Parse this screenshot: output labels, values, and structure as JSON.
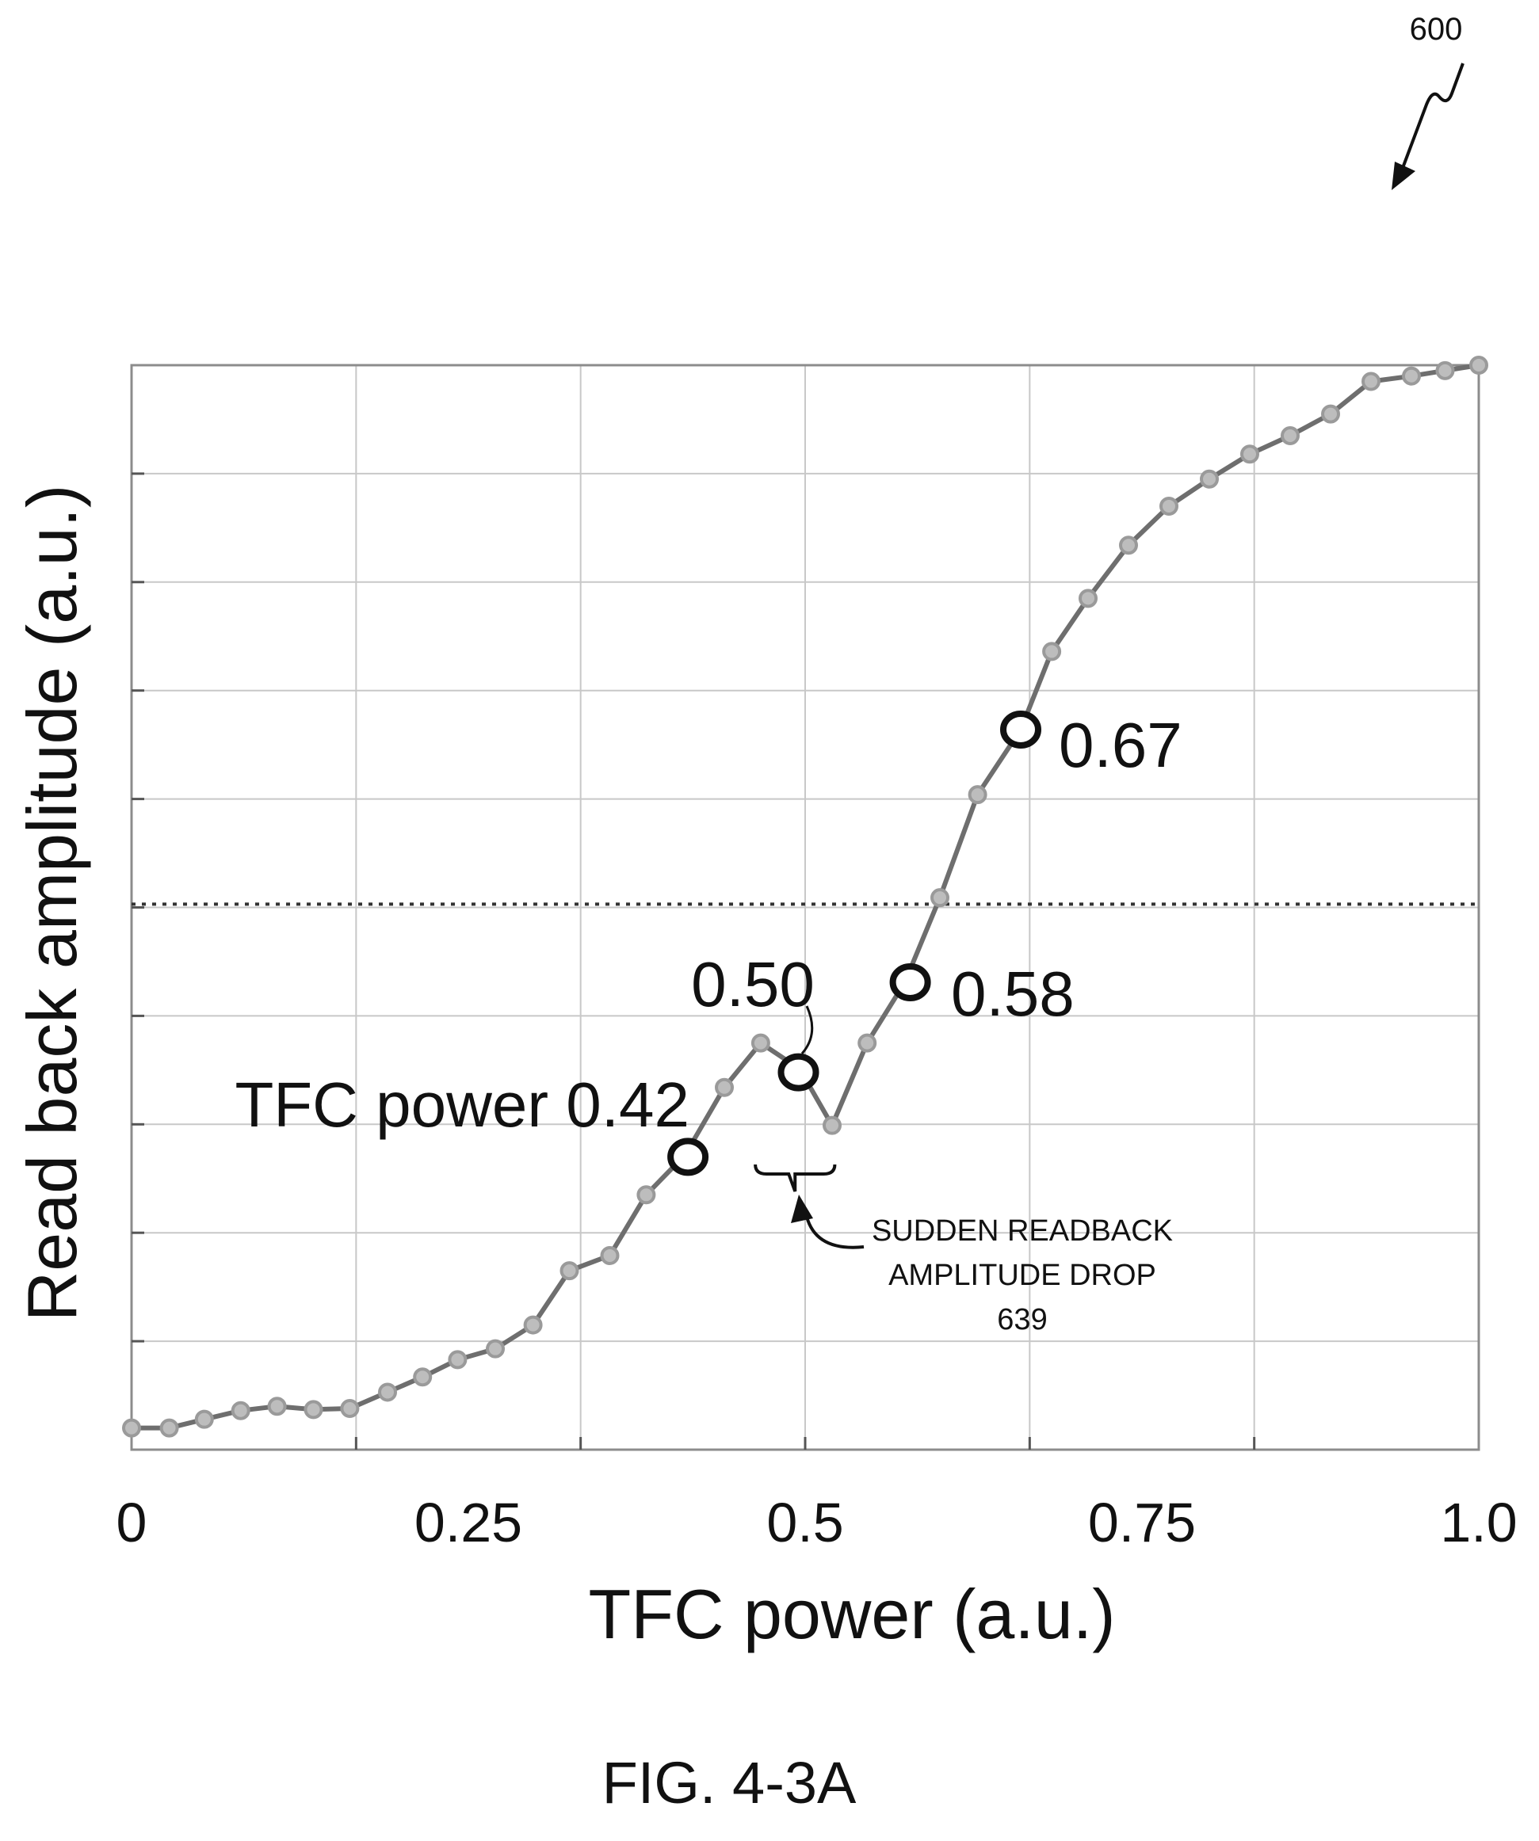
{
  "figure": {
    "ref_number": "600",
    "caption": "FIG. 4-3A"
  },
  "chart_data": {
    "type": "line",
    "xlabel": "TFC power (a.u.)",
    "ylabel": "Read back amplitude (a.u.)",
    "xlim": [
      0,
      1.0
    ],
    "ylim": [
      0,
      1.0
    ],
    "x_tick_labels": [
      "0",
      "0.25",
      "0.5",
      "0.75",
      "1.0"
    ],
    "x_ticks": [
      0,
      0.25,
      0.5,
      0.75,
      1.0
    ],
    "y_ticks_count": 10,
    "grid": true,
    "threshold_y": 0.503,
    "series": [
      {
        "x": [
          0.0,
          0.028,
          0.054,
          0.081,
          0.108,
          0.135,
          0.162,
          0.19,
          0.216,
          0.242,
          0.27,
          0.298,
          0.325,
          0.355,
          0.382,
          0.411,
          0.44,
          0.467,
          0.496,
          0.52,
          0.546,
          0.574,
          0.6,
          0.628,
          0.66,
          0.683,
          0.71,
          0.74,
          0.77,
          0.8,
          0.83,
          0.86,
          0.89,
          0.92,
          0.95,
          0.975,
          1.0
        ],
        "y": [
          0.02,
          0.02,
          0.028,
          0.036,
          0.04,
          0.037,
          0.038,
          0.053,
          0.067,
          0.083,
          0.093,
          0.115,
          0.165,
          0.179,
          0.235,
          0.272,
          0.334,
          0.375,
          0.351,
          0.299,
          0.375,
          0.431,
          0.509,
          0.604,
          0.664,
          0.736,
          0.785,
          0.834,
          0.87,
          0.895,
          0.918,
          0.935,
          0.955,
          0.985,
          0.99,
          0.995,
          1.0
        ]
      }
    ],
    "highlighted_points": [
      {
        "x": 0.413,
        "y": 0.27,
        "label": "TFC power 0.42"
      },
      {
        "x": 0.495,
        "y": 0.348,
        "label": "0.50"
      },
      {
        "x": 0.578,
        "y": 0.431,
        "label": "0.58"
      },
      {
        "x": 0.66,
        "y": 0.664,
        "label": "0.67"
      }
    ],
    "annotation": {
      "text_lines": [
        "SUDDEN READBACK",
        "AMPLITUDE DROP",
        "639"
      ],
      "bracket_x": [
        0.463,
        0.522
      ]
    }
  }
}
